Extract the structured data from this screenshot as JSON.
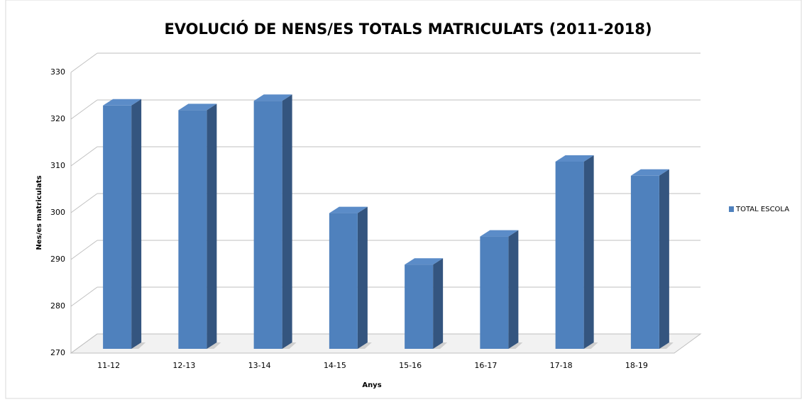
{
  "chart_data": {
    "type": "bar3d",
    "title": "EVOLUCIÓ DE NENS/ES TOTALS MATRICULATS (2011-2018)",
    "x_label": "Anys",
    "y_label": "Nes/es matriculats",
    "categories": [
      "11-12",
      "12-13",
      "13-14",
      "14-15",
      "15-16",
      "16-17",
      "17-18",
      "18-19"
    ],
    "series": [
      {
        "name": "TOTAL ESCOLA",
        "color": "#4f81bd",
        "values": [
          322,
          321,
          323,
          299,
          288,
          294,
          310,
          307
        ]
      }
    ],
    "ylim": [
      270,
      330
    ],
    "yticks": [
      270,
      280,
      290,
      300,
      310,
      320,
      330
    ],
    "grid": true,
    "legend": "right"
  }
}
